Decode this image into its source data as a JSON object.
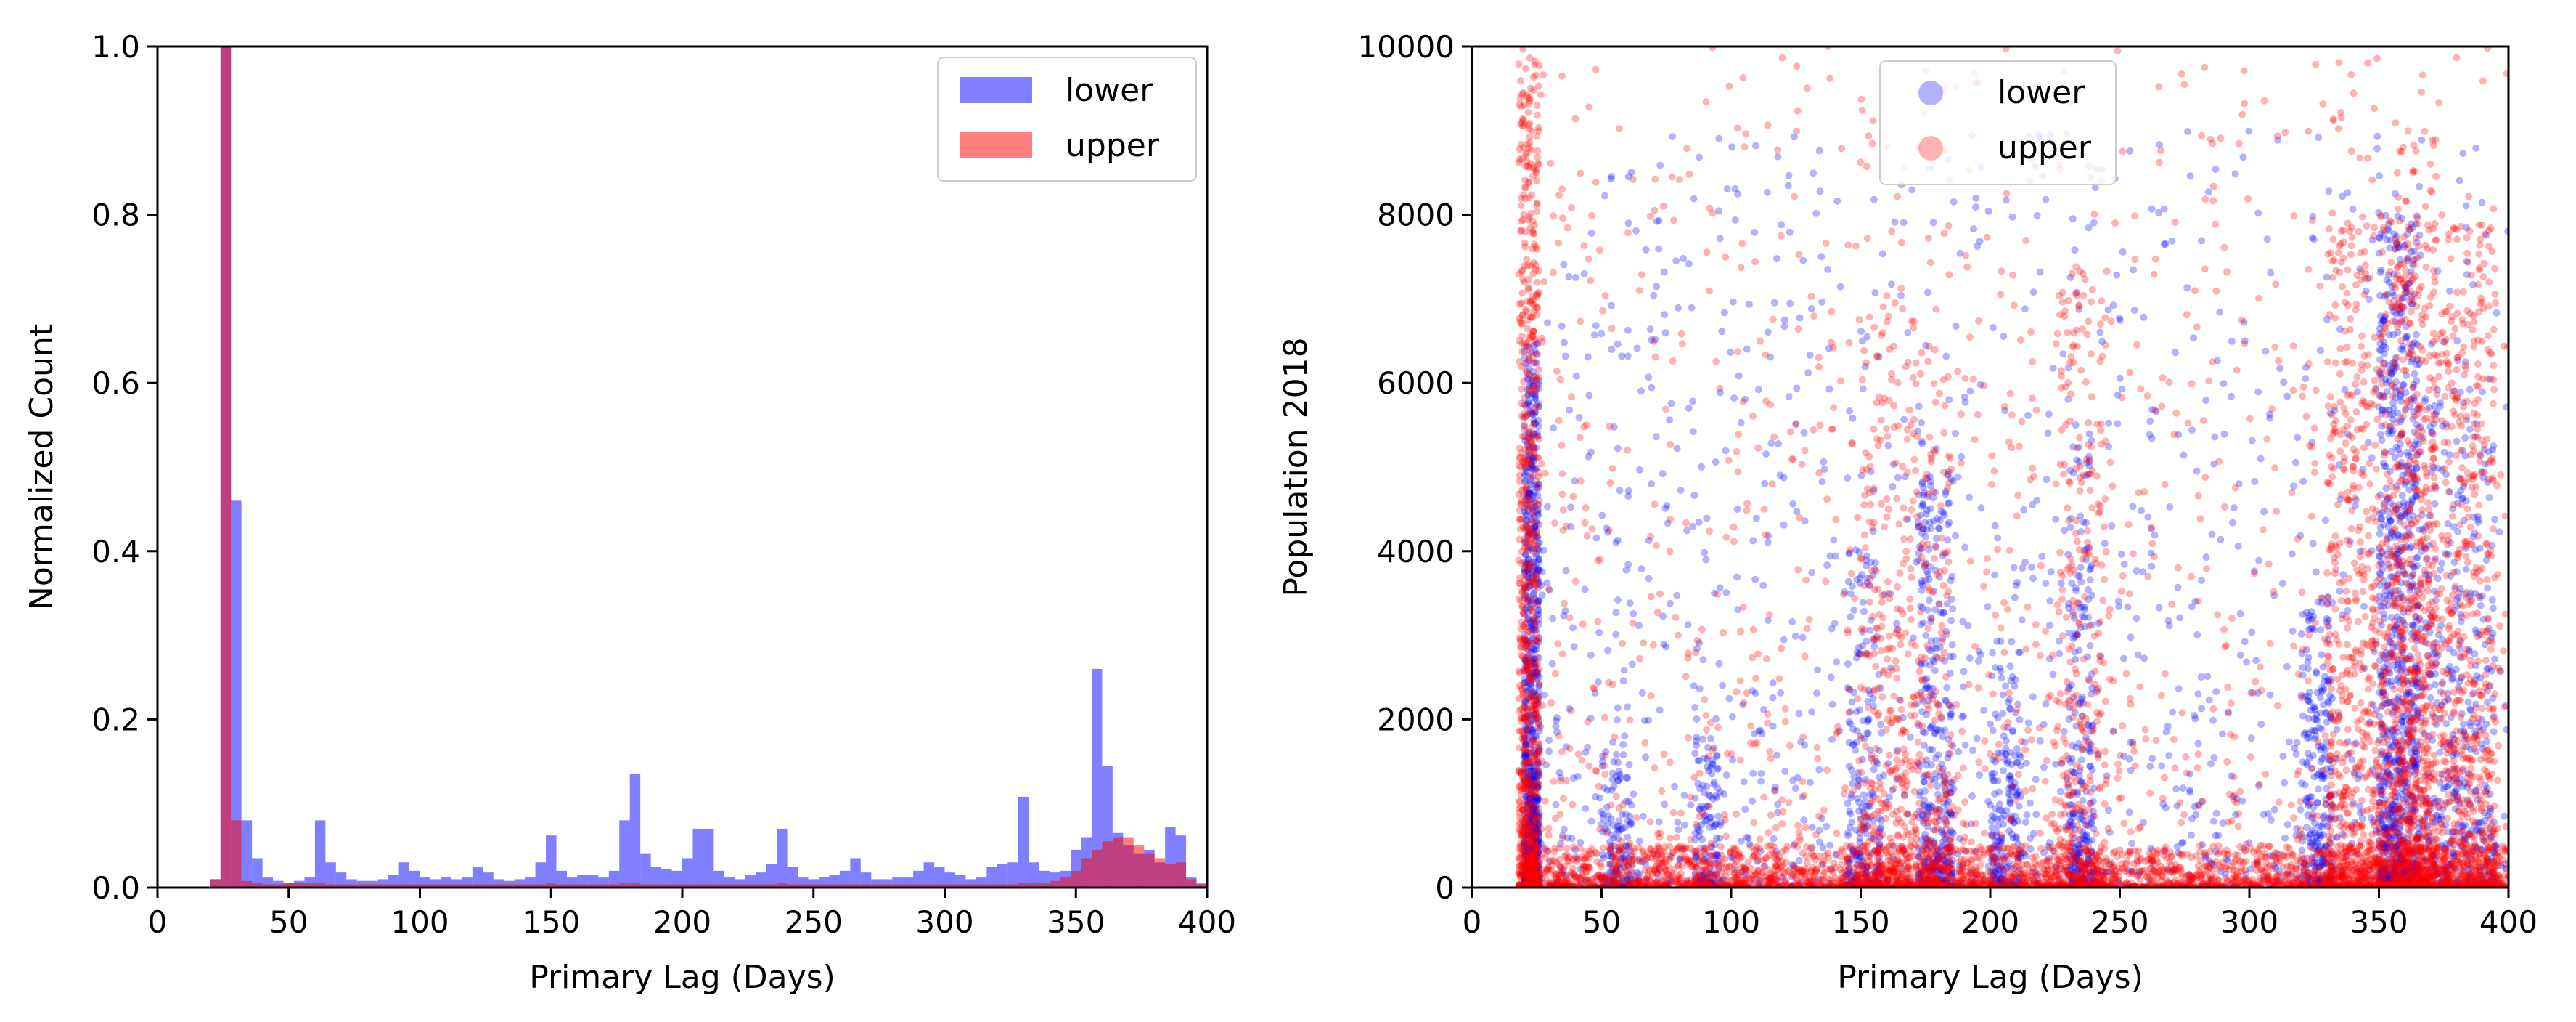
{
  "chart_data": [
    {
      "type": "histogram",
      "xlabel": "Primary Lag (Days)",
      "ylabel": "Normalized Count",
      "xlim": [
        0,
        400
      ],
      "ylim": [
        0,
        1.0
      ],
      "xticks": [
        "0",
        "50",
        "100",
        "150",
        "200",
        "250",
        "300",
        "350",
        "400"
      ],
      "yticks": [
        "0.0",
        "0.2",
        "0.4",
        "0.6",
        "0.8",
        "1.0"
      ],
      "bin_width": 4,
      "legend": {
        "position": "top-right",
        "entries": [
          "lower",
          "upper"
        ]
      },
      "series": [
        {
          "name": "lower",
          "color": "#0000ff",
          "alpha": 0.5,
          "bins": [
            [
              20,
              0.01
            ],
            [
              24,
              1.0
            ],
            [
              28,
              0.46
            ],
            [
              32,
              0.08
            ],
            [
              36,
              0.035
            ],
            [
              40,
              0.012
            ],
            [
              44,
              0.008
            ],
            [
              48,
              0.006
            ],
            [
              52,
              0.008
            ],
            [
              56,
              0.012
            ],
            [
              60,
              0.08
            ],
            [
              64,
              0.03
            ],
            [
              68,
              0.018
            ],
            [
              72,
              0.01
            ],
            [
              76,
              0.008
            ],
            [
              80,
              0.008
            ],
            [
              84,
              0.01
            ],
            [
              88,
              0.015
            ],
            [
              92,
              0.03
            ],
            [
              96,
              0.02
            ],
            [
              100,
              0.012
            ],
            [
              104,
              0.01
            ],
            [
              108,
              0.012
            ],
            [
              112,
              0.01
            ],
            [
              116,
              0.012
            ],
            [
              120,
              0.025
            ],
            [
              124,
              0.018
            ],
            [
              128,
              0.01
            ],
            [
              132,
              0.008
            ],
            [
              136,
              0.01
            ],
            [
              140,
              0.012
            ],
            [
              144,
              0.03
            ],
            [
              148,
              0.062
            ],
            [
              152,
              0.02
            ],
            [
              156,
              0.012
            ],
            [
              160,
              0.015
            ],
            [
              164,
              0.015
            ],
            [
              168,
              0.012
            ],
            [
              172,
              0.02
            ],
            [
              176,
              0.08
            ],
            [
              180,
              0.135
            ],
            [
              184,
              0.04
            ],
            [
              188,
              0.025
            ],
            [
              192,
              0.022
            ],
            [
              196,
              0.02
            ],
            [
              200,
              0.035
            ],
            [
              204,
              0.07
            ],
            [
              208,
              0.07
            ],
            [
              212,
              0.02
            ],
            [
              216,
              0.012
            ],
            [
              220,
              0.01
            ],
            [
              224,
              0.015
            ],
            [
              228,
              0.018
            ],
            [
              232,
              0.028
            ],
            [
              236,
              0.07
            ],
            [
              240,
              0.025
            ],
            [
              244,
              0.012
            ],
            [
              248,
              0.01
            ],
            [
              252,
              0.012
            ],
            [
              256,
              0.015
            ],
            [
              260,
              0.02
            ],
            [
              264,
              0.035
            ],
            [
              268,
              0.018
            ],
            [
              272,
              0.01
            ],
            [
              276,
              0.01
            ],
            [
              280,
              0.012
            ],
            [
              284,
              0.012
            ],
            [
              288,
              0.02
            ],
            [
              292,
              0.03
            ],
            [
              296,
              0.025
            ],
            [
              300,
              0.018
            ],
            [
              304,
              0.015
            ],
            [
              308,
              0.01
            ],
            [
              312,
              0.012
            ],
            [
              316,
              0.025
            ],
            [
              320,
              0.028
            ],
            [
              324,
              0.03
            ],
            [
              328,
              0.108
            ],
            [
              332,
              0.03
            ],
            [
              336,
              0.02
            ],
            [
              340,
              0.018
            ],
            [
              344,
              0.02
            ],
            [
              348,
              0.045
            ],
            [
              352,
              0.06
            ],
            [
              356,
              0.26
            ],
            [
              360,
              0.145
            ],
            [
              364,
              0.065
            ],
            [
              368,
              0.05
            ],
            [
              372,
              0.04
            ],
            [
              376,
              0.045
            ],
            [
              380,
              0.03
            ],
            [
              384,
              0.072
            ],
            [
              388,
              0.062
            ],
            [
              392,
              0.012
            ],
            [
              396,
              0.005
            ]
          ]
        },
        {
          "name": "upper",
          "color": "#ff0000",
          "alpha": 0.5,
          "bins": [
            [
              20,
              0.01
            ],
            [
              24,
              1.0
            ],
            [
              28,
              0.08
            ],
            [
              32,
              0.008
            ],
            [
              36,
              0.006
            ],
            [
              40,
              0.004
            ],
            [
              44,
              0.004
            ],
            [
              48,
              0.006
            ],
            [
              52,
              0.006
            ],
            [
              56,
              0.005
            ],
            [
              60,
              0.005
            ],
            [
              64,
              0.004
            ],
            [
              68,
              0.004
            ],
            [
              72,
              0.004
            ],
            [
              76,
              0.004
            ],
            [
              80,
              0.004
            ],
            [
              84,
              0.004
            ],
            [
              88,
              0.004
            ],
            [
              92,
              0.004
            ],
            [
              96,
              0.004
            ],
            [
              100,
              0.004
            ],
            [
              104,
              0.004
            ],
            [
              108,
              0.004
            ],
            [
              112,
              0.004
            ],
            [
              116,
              0.004
            ],
            [
              120,
              0.004
            ],
            [
              124,
              0.004
            ],
            [
              128,
              0.004
            ],
            [
              132,
              0.004
            ],
            [
              136,
              0.004
            ],
            [
              140,
              0.004
            ],
            [
              144,
              0.004
            ],
            [
              148,
              0.005
            ],
            [
              152,
              0.004
            ],
            [
              156,
              0.004
            ],
            [
              160,
              0.004
            ],
            [
              164,
              0.004
            ],
            [
              168,
              0.004
            ],
            [
              172,
              0.004
            ],
            [
              176,
              0.005
            ],
            [
              180,
              0.005
            ],
            [
              184,
              0.004
            ],
            [
              188,
              0.004
            ],
            [
              192,
              0.004
            ],
            [
              196,
              0.004
            ],
            [
              200,
              0.004
            ],
            [
              204,
              0.004
            ],
            [
              208,
              0.004
            ],
            [
              212,
              0.004
            ],
            [
              216,
              0.004
            ],
            [
              220,
              0.004
            ],
            [
              224,
              0.004
            ],
            [
              228,
              0.004
            ],
            [
              232,
              0.004
            ],
            [
              236,
              0.005
            ],
            [
              240,
              0.004
            ],
            [
              244,
              0.004
            ],
            [
              248,
              0.004
            ],
            [
              252,
              0.004
            ],
            [
              256,
              0.004
            ],
            [
              260,
              0.004
            ],
            [
              264,
              0.004
            ],
            [
              268,
              0.004
            ],
            [
              272,
              0.004
            ],
            [
              276,
              0.004
            ],
            [
              280,
              0.004
            ],
            [
              284,
              0.004
            ],
            [
              288,
              0.004
            ],
            [
              292,
              0.004
            ],
            [
              296,
              0.004
            ],
            [
              300,
              0.004
            ],
            [
              304,
              0.004
            ],
            [
              308,
              0.004
            ],
            [
              312,
              0.004
            ],
            [
              316,
              0.004
            ],
            [
              320,
              0.004
            ],
            [
              324,
              0.004
            ],
            [
              328,
              0.005
            ],
            [
              332,
              0.005
            ],
            [
              336,
              0.006
            ],
            [
              340,
              0.008
            ],
            [
              344,
              0.012
            ],
            [
              348,
              0.02
            ],
            [
              352,
              0.035
            ],
            [
              356,
              0.045
            ],
            [
              360,
              0.055
            ],
            [
              364,
              0.06
            ],
            [
              368,
              0.06
            ],
            [
              372,
              0.05
            ],
            [
              376,
              0.04
            ],
            [
              380,
              0.035
            ],
            [
              384,
              0.028
            ],
            [
              388,
              0.03
            ],
            [
              392,
              0.01
            ],
            [
              396,
              0.004
            ]
          ]
        }
      ]
    },
    {
      "type": "scatter",
      "xlabel": "Primary Lag (Days)",
      "ylabel": "Population 2018",
      "xlim": [
        0,
        400
      ],
      "ylim": [
        0,
        10000
      ],
      "xticks": [
        "0",
        "50",
        "100",
        "150",
        "200",
        "250",
        "300",
        "350",
        "400"
      ],
      "yticks": [
        "0",
        "2000",
        "4000",
        "6000",
        "8000",
        "10000"
      ],
      "legend": {
        "position": "top-center",
        "entries": [
          "lower",
          "upper"
        ]
      },
      "series": [
        {
          "name": "lower",
          "color": "#0000ff",
          "alpha": 0.3,
          "clusters": [
            {
              "lag": [
                20,
                26
              ],
              "pop_max": 6500,
              "weight": 900
            },
            {
              "lag": [
                26,
                400
              ],
              "pop_max": 9000,
              "weight": 1500
            },
            {
              "lag": [
                50,
                62
              ],
              "pop_max": 1500,
              "weight": 120
            },
            {
              "lag": [
                86,
                96
              ],
              "pop_max": 1800,
              "weight": 120
            },
            {
              "lag": [
                145,
                158
              ],
              "pop_max": 4000,
              "weight": 200
            },
            {
              "lag": [
                172,
                186
              ],
              "pop_max": 5000,
              "weight": 350
            },
            {
              "lag": [
                200,
                212
              ],
              "pop_max": 3000,
              "weight": 200
            },
            {
              "lag": [
                230,
                240
              ],
              "pop_max": 5500,
              "weight": 250
            },
            {
              "lag": [
                320,
                332
              ],
              "pop_max": 3500,
              "weight": 250
            },
            {
              "lag": [
                350,
                365
              ],
              "pop_max": 8000,
              "weight": 900
            },
            {
              "lag": [
                365,
                395
              ],
              "pop_max": 6000,
              "weight": 400
            }
          ]
        },
        {
          "name": "upper",
          "color": "#ff0000",
          "alpha": 0.3,
          "clusters": [
            {
              "lag": [
                18,
                26
              ],
              "pop_max": 10000,
              "weight": 900
            },
            {
              "lag": [
                26,
                400
              ],
              "pop_max": 500,
              "weight": 2500
            },
            {
              "lag": [
                26,
                400
              ],
              "pop_max": 10000,
              "weight": 1400
            },
            {
              "lag": [
                150,
                185
              ],
              "pop_max": 7000,
              "weight": 500
            },
            {
              "lag": [
                225,
                245
              ],
              "pop_max": 7500,
              "weight": 300
            },
            {
              "lag": [
                330,
                395
              ],
              "pop_max": 8000,
              "weight": 1800
            },
            {
              "lag": [
                355,
                372
              ],
              "pop_max": 9000,
              "weight": 400
            }
          ]
        }
      ]
    }
  ]
}
